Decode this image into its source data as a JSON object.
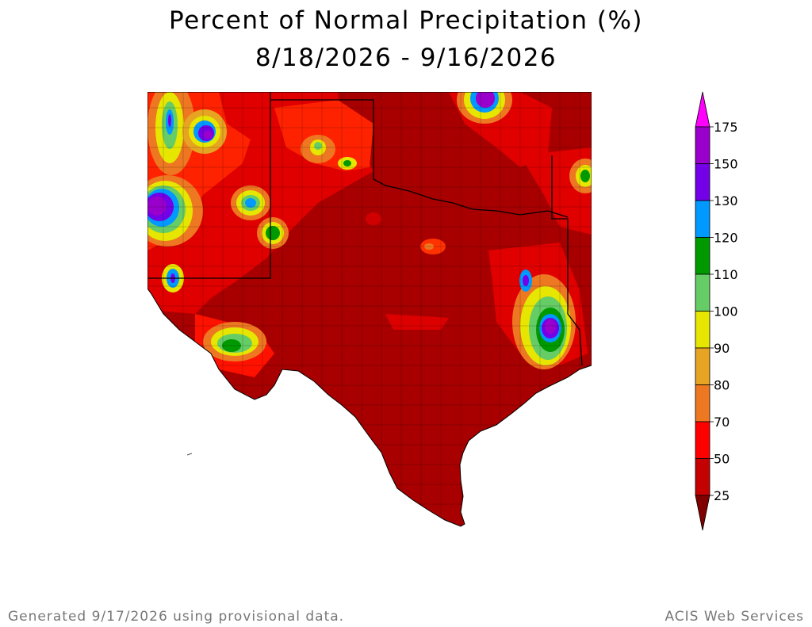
{
  "title": "Percent of Normal Precipitation (%)",
  "date_range": "8/18/2026 - 9/16/2026",
  "legend": {
    "ticks": [
      "175",
      "150",
      "130",
      "120",
      "110",
      "100",
      "90",
      "80",
      "70",
      "50",
      "25"
    ],
    "bins": [
      {
        "color": "#ff00ff"
      },
      {
        "color": "#9900cc"
      },
      {
        "color": "#7300e6"
      },
      {
        "color": "#0099ff"
      },
      {
        "color": "#009900"
      },
      {
        "color": "#66cc66"
      },
      {
        "color": "#e6e600"
      },
      {
        "color": "#e6a422"
      },
      {
        "color": "#ee7722"
      },
      {
        "color": "#ff0000"
      },
      {
        "color": "#c40000"
      },
      {
        "color": "#800000"
      }
    ]
  },
  "map": {
    "background_color": "#a80000",
    "regions": [
      "Texas",
      "New Mexico",
      "Oklahoma",
      "Louisiana"
    ]
  },
  "footer": {
    "left": "Generated 9/17/2026  using provisional data.",
    "right": "ACIS Web Services"
  }
}
